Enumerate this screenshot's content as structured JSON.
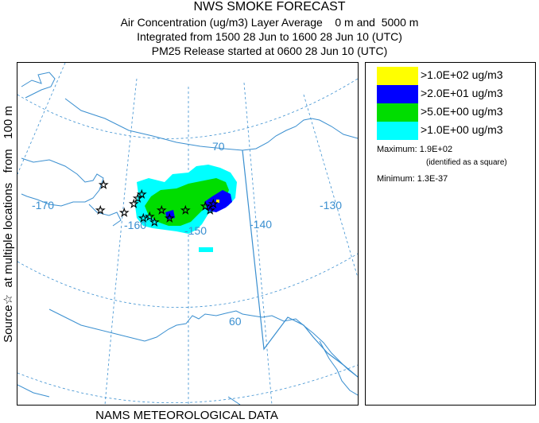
{
  "titles": {
    "main": "NWS SMOKE FORECAST",
    "line2": "Air Concentration (ug/m3) Layer Average    0 m and  5000 m",
    "line3": "Integrated from 1500 28 Jun to 1600 28 Jun 10 (UTC)",
    "line4": "PM25 Release started at 0600 28 Jun 10 (UTC)"
  },
  "side_label": "Source☆  at multiple locations   from   100 m",
  "bottom_label": "NAMS METEOROLOGICAL DATA",
  "map": {
    "lon_labels": [
      "-170",
      "-160",
      "-150",
      "-140",
      "-130"
    ],
    "lat_labels": [
      "70",
      "60"
    ],
    "colors": {
      "coast": "#3a8fd0",
      "grid": "#3a8fd0",
      "label": "#3a8fd0"
    }
  },
  "legend": {
    "items": [
      {
        "label": ">1.0E+02 ug/m3",
        "color": "#ffff00"
      },
      {
        "label": ">2.0E+01 ug/m3",
        "color": "#0000ff"
      },
      {
        "label": ">5.0E+00 ug/m3",
        "color": "#00dd00"
      },
      {
        "label": ">1.0E+00 ug/m3",
        "color": "#00ffff"
      }
    ],
    "maximum": "Maximum: 1.9E+02",
    "maximum_note": "(identified as a square)",
    "minimum": "Minimum: 1.3E-37"
  }
}
